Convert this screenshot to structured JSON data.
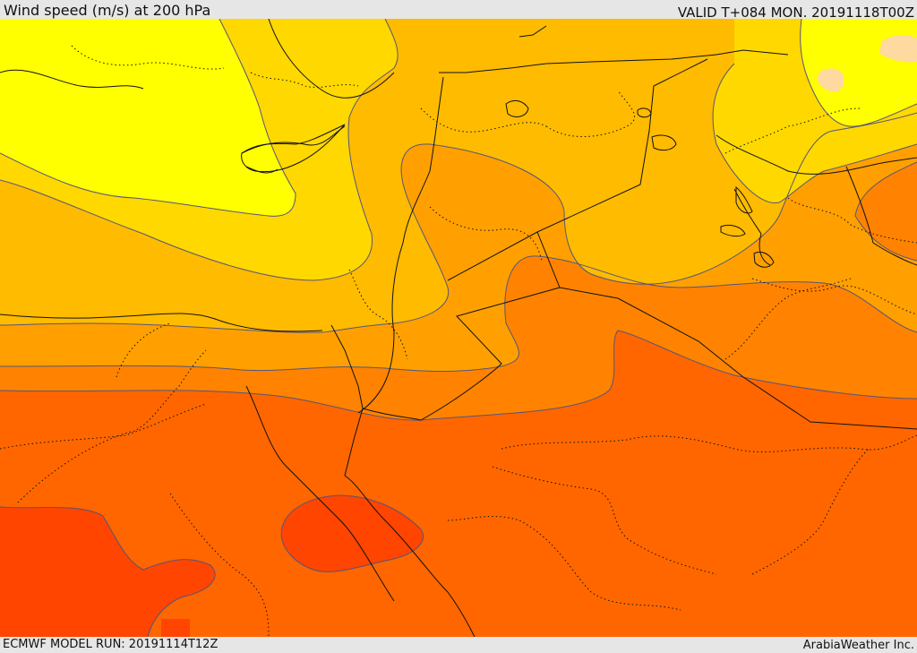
{
  "header": {
    "title": "Wind speed (m/s) at 200 hPa",
    "valid": "VALID T+084 MON. 20191118T00Z"
  },
  "footer": {
    "model_run": "ECMWF MODEL RUN: 20191114T12Z",
    "credit": "ArabiaWeather Inc."
  },
  "map": {
    "variable": "wind speed",
    "level": "200 hPa",
    "fill_colors": {
      "lightest": "#fed9a0",
      "yellow": "#ffff00",
      "yellow_orange": "#ffd800",
      "gold": "#ffbb00",
      "orange_light": "#ffa000",
      "orange": "#ff8300",
      "orange_dark": "#ff6600",
      "red_orange": "#ff4500"
    },
    "boundary_color": "#111111",
    "contour_color": "#555577"
  }
}
